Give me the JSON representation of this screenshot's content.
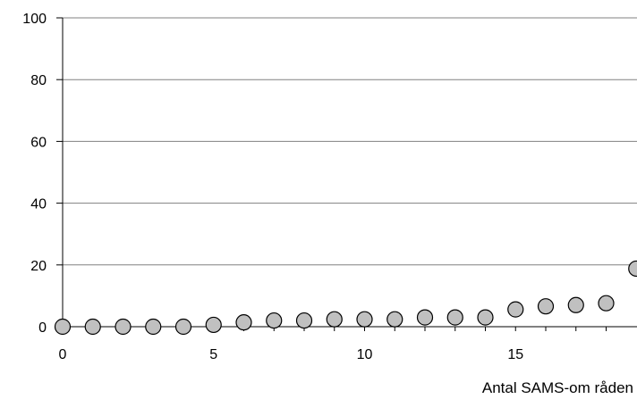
{
  "chart_data": {
    "type": "scatter",
    "title": "",
    "xlabel": "Antal SAMS-om råden",
    "ylabel": "",
    "xlim": [
      0,
      19
    ],
    "ylim": [
      0,
      100
    ],
    "x_ticks": [
      "0",
      "5",
      "10",
      "15"
    ],
    "y_ticks": [
      "0",
      "20",
      "40",
      "60",
      "80",
      "100"
    ],
    "grid": "horizontal",
    "marker_color": "#c0c0c0",
    "marker_edge_color": "#000000",
    "gridline_color": "#808080",
    "series": [
      {
        "x": [
          0,
          1,
          2,
          3,
          4,
          5,
          6,
          7,
          8,
          9,
          10,
          11,
          12,
          13,
          14,
          15,
          16,
          17,
          18,
          19
        ],
        "y": [
          0,
          0,
          0,
          0,
          0,
          0.6,
          1.4,
          2,
          2,
          2.4,
          2.4,
          2.4,
          3,
          3,
          3,
          5.6,
          6.6,
          7,
          7.6,
          18.8
        ]
      }
    ]
  }
}
